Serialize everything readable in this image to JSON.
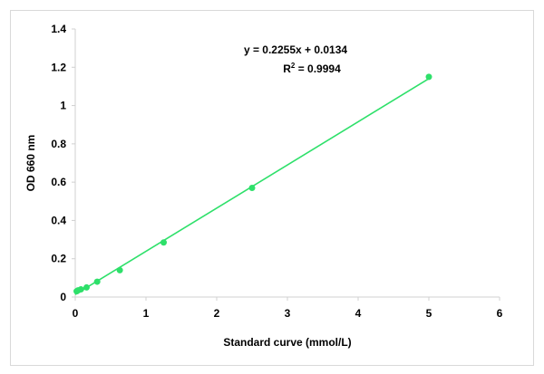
{
  "chart_data": {
    "type": "scatter",
    "title": "",
    "xlabel": "Standard curve (mmol/L)",
    "ylabel": "OD 660 nm",
    "xlim": [
      0,
      6
    ],
    "ylim": [
      0,
      1.4
    ],
    "x_ticks": [
      "0",
      "1",
      "2",
      "3",
      "4",
      "5",
      "6"
    ],
    "y_ticks": [
      "0",
      "0.2",
      "0.4",
      "0.6",
      "0.8",
      "1",
      "1.2",
      "1.4"
    ],
    "grid": false,
    "legend": "none",
    "series": [
      {
        "x": [
          0.02,
          0.04,
          0.08,
          0.16,
          0.31,
          0.63,
          1.25,
          2.5,
          5.0
        ],
        "y": [
          0.03,
          0.035,
          0.04,
          0.05,
          0.08,
          0.14,
          0.285,
          0.57,
          1.15
        ],
        "color": "#2ee06a"
      }
    ],
    "trendline": {
      "slope": 0.2255,
      "intercept": 0.0134,
      "x_range": [
        0,
        5.0
      ],
      "color": "#2ee06a"
    },
    "annotations": {
      "equation": "y = 0.2255x + 0.0134",
      "r_label": "R",
      "r_superscript": "2",
      "r_value": " = 0.9994"
    }
  }
}
